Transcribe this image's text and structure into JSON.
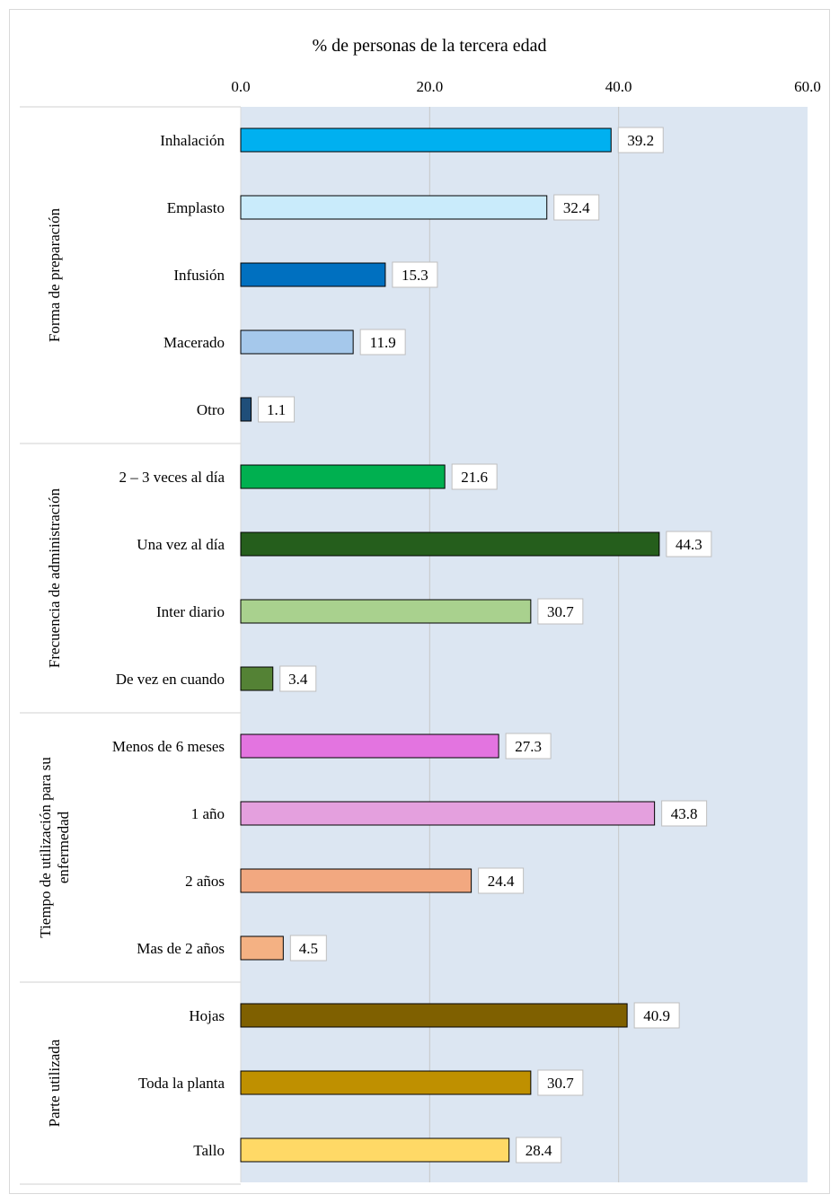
{
  "chart_data": {
    "type": "bar",
    "orientation": "horizontal",
    "title": "% de personas de la tercera edad",
    "xlim": [
      0,
      60
    ],
    "x_ticks": [
      "0.0",
      "20.0",
      "40.0",
      "60.0"
    ],
    "x_axis_position": "top",
    "grid": true,
    "groups": [
      {
        "label": "Forma de preparación",
        "items": [
          {
            "category": "Inhalación",
            "value": 39.2,
            "label": "39.2",
            "color": "#00b0f0"
          },
          {
            "category": "Emplasto",
            "value": 32.4,
            "label": "32.4",
            "color": "#c9ebfb"
          },
          {
            "category": "Infusión",
            "value": 15.3,
            "label": "15.3",
            "color": "#0070c0"
          },
          {
            "category": "Macerado",
            "value": 11.9,
            "label": "11.9",
            "color": "#a5c8eb"
          },
          {
            "category": "Otro",
            "value": 1.1,
            "label": "1.1",
            "color": "#1f4e79"
          }
        ]
      },
      {
        "label": "Frecuencia de administración",
        "items": [
          {
            "category": "2 – 3 veces al día",
            "value": 21.6,
            "label": "21.6",
            "color": "#00b050"
          },
          {
            "category": "Una vez al día",
            "value": 44.3,
            "label": "44.3",
            "color": "#255e1c"
          },
          {
            "category": "Inter diario",
            "value": 30.7,
            "label": "30.7",
            "color": "#a9d18e"
          },
          {
            "category": "De vez en cuando",
            "value": 3.4,
            "label": "3.4",
            "color": "#548235"
          }
        ]
      },
      {
        "label": "Tiempo de utilización para su enfermedad",
        "label_lines": [
          "Tiempo de utilización para su",
          "enfermedad"
        ],
        "items": [
          {
            "category": "Menos de 6 meses",
            "value": 27.3,
            "label": "27.3",
            "color": "#e374e0"
          },
          {
            "category": "1 año",
            "value": 43.8,
            "label": "43.8",
            "color": "#e4a0de"
          },
          {
            "category": "2 años",
            "value": 24.4,
            "label": "24.4",
            "color": "#f2a880"
          },
          {
            "category": "Mas de 2 años",
            "value": 4.5,
            "label": "4.5",
            "color": "#f4b183"
          }
        ]
      },
      {
        "label": "Parte utilizada",
        "items": [
          {
            "category": "Hojas",
            "value": 40.9,
            "label": "40.9",
            "color": "#7f6000"
          },
          {
            "category": "Toda la planta",
            "value": 30.7,
            "label": "30.7",
            "color": "#bf9000"
          },
          {
            "category": "Tallo",
            "value": 28.4,
            "label": "28.4",
            "color": "#ffd966"
          }
        ]
      }
    ],
    "colors": {
      "plot_background": "#dce6f2",
      "gridline": "#c8c8c8",
      "group_divider": "#d9d9d9",
      "bar_outline": "#000000",
      "label_box_border": "#bfbfbf"
    }
  }
}
